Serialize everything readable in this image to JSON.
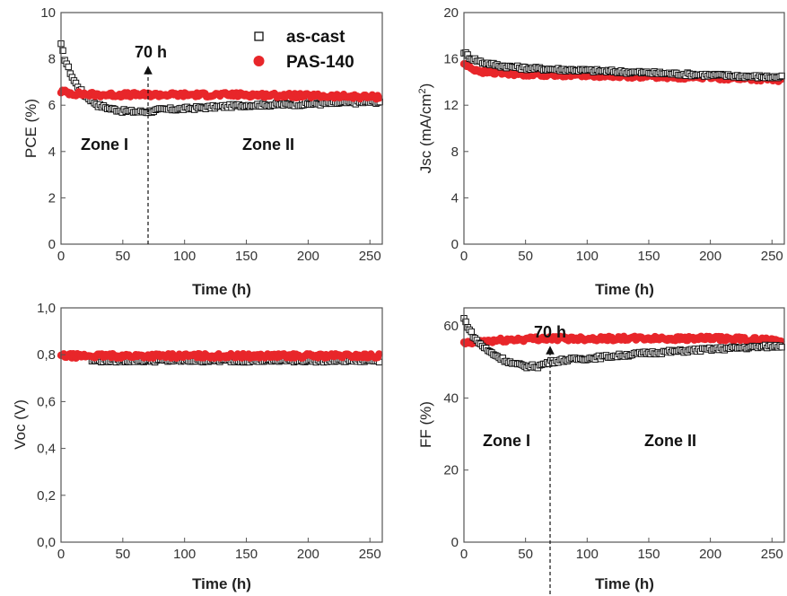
{
  "colors": {
    "as_cast": "#111111",
    "pas140": "#e8262a",
    "axis": "#555555"
  },
  "legend": {
    "as_cast": "as-cast",
    "pas140": "PAS-140",
    "placement": "top-right of PCE panel"
  },
  "chart_data": [
    {
      "id": "pce",
      "type": "scatter",
      "xlabel": "Time (h)",
      "ylabel": "PCE (%)",
      "xlim": [
        0,
        260
      ],
      "ylim": [
        0,
        10
      ],
      "xticks": [
        "0",
        "50",
        "100",
        "150",
        "200",
        "250"
      ],
      "yticks": [
        "0",
        "2",
        "4",
        "6",
        "8",
        "10"
      ],
      "annotations": [
        {
          "text": "70 h",
          "x": 70
        },
        {
          "text": "Zone I"
        },
        {
          "text": "Zone II"
        }
      ],
      "marker_line_x": 70,
      "series": [
        {
          "name": "as-cast",
          "x": [
            0,
            3,
            6,
            10,
            15,
            20,
            25,
            30,
            40,
            50,
            60,
            70,
            80,
            100,
            150,
            200,
            258
          ],
          "y": [
            8.6,
            8.0,
            7.6,
            7.1,
            6.7,
            6.4,
            6.2,
            6.0,
            5.85,
            5.75,
            5.72,
            5.72,
            5.8,
            5.85,
            6.0,
            6.05,
            6.15
          ]
        },
        {
          "name": "PAS-140",
          "x": [
            0,
            10,
            30,
            60,
            100,
            150,
            200,
            258
          ],
          "y": [
            6.6,
            6.5,
            6.45,
            6.45,
            6.45,
            6.45,
            6.4,
            6.35
          ]
        }
      ]
    },
    {
      "id": "jsc",
      "type": "scatter",
      "xlabel": "Time (h)",
      "ylabel": "Jsc (mA/cm",
      "ylabel_sup": "2",
      "ylabel_end": ")",
      "xlim": [
        0,
        260
      ],
      "ylim": [
        0,
        20
      ],
      "xticks": [
        "0",
        "50",
        "100",
        "150",
        "200",
        "250"
      ],
      "yticks": [
        "0",
        "4",
        "8",
        "12",
        "16",
        "20"
      ],
      "series": [
        {
          "name": "as-cast",
          "x": [
            0,
            5,
            15,
            30,
            50,
            100,
            150,
            200,
            258
          ],
          "y": [
            16.6,
            16.1,
            15.7,
            15.4,
            15.2,
            15.0,
            14.8,
            14.6,
            14.4
          ]
        },
        {
          "name": "PAS-140",
          "x": [
            0,
            5,
            15,
            30,
            50,
            100,
            150,
            200,
            258
          ],
          "y": [
            15.6,
            15.2,
            14.9,
            14.8,
            14.7,
            14.6,
            14.5,
            14.4,
            14.2
          ]
        }
      ]
    },
    {
      "id": "voc",
      "type": "scatter",
      "xlabel": "Time (h)",
      "ylabel": "Voc (V)",
      "xlim": [
        0,
        260
      ],
      "ylim": [
        0,
        1.0
      ],
      "xticks": [
        "0",
        "50",
        "100",
        "150",
        "200",
        "250"
      ],
      "yticks": [
        "0,0",
        "0,2",
        "0,4",
        "0,6",
        "0,8",
        "1,0"
      ],
      "series": [
        {
          "name": "as-cast",
          "x": [
            25,
            60,
            100,
            150,
            200,
            258
          ],
          "y": [
            0.775,
            0.775,
            0.775,
            0.775,
            0.775,
            0.775
          ]
        },
        {
          "name": "PAS-140",
          "x": [
            0,
            50,
            100,
            150,
            200,
            258
          ],
          "y": [
            0.795,
            0.795,
            0.795,
            0.795,
            0.795,
            0.795
          ]
        }
      ]
    },
    {
      "id": "ff",
      "type": "scatter",
      "xlabel": "Time (h)",
      "ylabel": "FF (%)",
      "xlim": [
        0,
        260
      ],
      "ylim": [
        0,
        65
      ],
      "xticks": [
        "0",
        "50",
        "100",
        "150",
        "200",
        "250"
      ],
      "yticks": [
        "0",
        "20",
        "40",
        "60"
      ],
      "annotations": [
        {
          "text": "70 h",
          "x": 70
        },
        {
          "text": "Zone I"
        },
        {
          "text": "Zone II"
        }
      ],
      "marker_line_x": 70,
      "series": [
        {
          "name": "as-cast",
          "x": [
            0,
            3,
            6,
            10,
            15,
            20,
            30,
            40,
            50,
            60,
            70,
            80,
            100,
            150,
            200,
            258
          ],
          "y": [
            62,
            60,
            58,
            56,
            54.5,
            53,
            51,
            49.5,
            48.8,
            48.8,
            50,
            50.5,
            51,
            52.5,
            53.5,
            54.5
          ]
        },
        {
          "name": "PAS-140",
          "x": [
            0,
            10,
            30,
            60,
            100,
            150,
            200,
            258
          ],
          "y": [
            55,
            55.5,
            56,
            56.5,
            56.5,
            56.5,
            56.5,
            56
          ]
        }
      ]
    }
  ]
}
